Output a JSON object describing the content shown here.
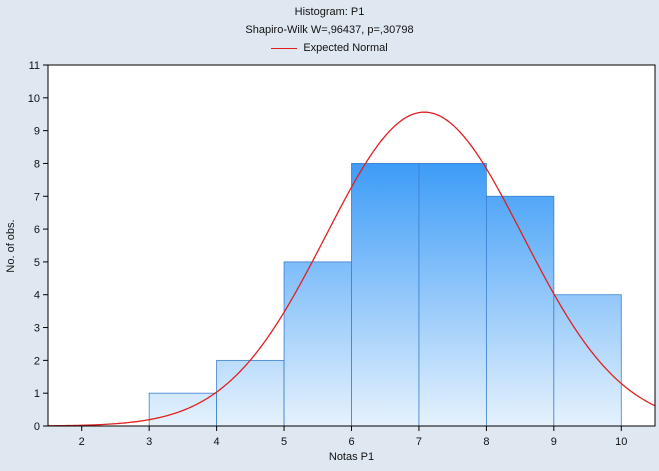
{
  "chart_data": {
    "type": "bar",
    "title": "Histogram: P1",
    "subtitle": "Shapiro-Wilk W=,96437, p=,30798",
    "legend": {
      "entries": [
        "Expected Normal"
      ],
      "placement": "top-center"
    },
    "xlabel": "Notas P1",
    "ylabel": "No. of obs.",
    "xlim": [
      1.5,
      10.5
    ],
    "ylim": [
      0,
      11
    ],
    "x_ticks": [
      2,
      3,
      4,
      5,
      6,
      7,
      8,
      9,
      10
    ],
    "y_ticks": [
      0,
      1,
      2,
      3,
      4,
      5,
      6,
      7,
      8,
      9,
      10,
      11
    ],
    "bins": [
      {
        "from": 2,
        "to": 3,
        "count": 0
      },
      {
        "from": 3,
        "to": 4,
        "count": 1
      },
      {
        "from": 4,
        "to": 5,
        "count": 2
      },
      {
        "from": 5,
        "to": 6,
        "count": 5
      },
      {
        "from": 6,
        "to": 7,
        "count": 8
      },
      {
        "from": 7,
        "to": 8,
        "count": 8
      },
      {
        "from": 8,
        "to": 9,
        "count": 7
      },
      {
        "from": 9,
        "to": 10,
        "count": 4
      }
    ],
    "expected_normal": {
      "name": "Expected Normal",
      "mean": 7.08,
      "sd": 1.46,
      "n": 35,
      "bin_width": 1
    },
    "colors": {
      "bar_top": "#3d9cf7",
      "bar_bottom": "#e6f2fd",
      "bar_edge": "#3b7fd0",
      "curve": "#e02020",
      "background": "#dfe8f1",
      "plot_bg": "#ffffff"
    }
  }
}
